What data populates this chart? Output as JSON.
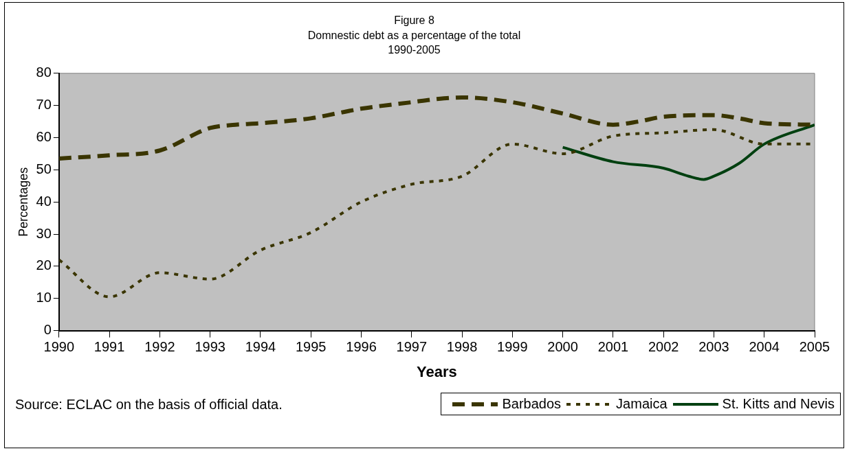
{
  "chart_data": {
    "type": "line",
    "title": "Figure 8\nDomnestic debt as a percentage of the total\n1990-2005",
    "xlabel": "Years",
    "ylabel": "Percentages",
    "xlim": [
      1990,
      2005
    ],
    "xticks": [
      1990,
      1991,
      1992,
      1993,
      1994,
      1995,
      1996,
      1997,
      1998,
      1999,
      2000,
      2001,
      2002,
      2003,
      2004,
      2005
    ],
    "ylim": [
      0,
      80
    ],
    "yticks": [
      0,
      10,
      20,
      30,
      40,
      50,
      60,
      70,
      80
    ],
    "grid": false,
    "legend": "bottom right",
    "marker": "none",
    "annotations": [
      "Source: ECLAC on the basis of official data."
    ],
    "series": [
      {
        "name": "Barbados",
        "color": "#3a3500",
        "line_style": "dashed",
        "x": [
          1990,
          1991,
          1992,
          1993,
          1993.5,
          1994,
          1995,
          1995.5,
          1996,
          1997,
          1997.5,
          1998,
          1999,
          2000,
          2001,
          2001.5,
          2002,
          2003,
          2003.5,
          2004,
          2005
        ],
        "values": [
          53.5,
          54.5,
          56,
          63,
          64,
          64.5,
          66,
          67.5,
          69,
          71,
          72,
          72.5,
          71,
          67.5,
          64,
          65,
          66.5,
          67,
          66,
          64.5,
          64
        ]
      },
      {
        "name": "Jamaica",
        "color": "#3a3500",
        "line_style": "dotted",
        "x": [
          1990,
          1991,
          1992,
          1993,
          1994,
          1995,
          1996,
          1997,
          1998,
          1999,
          2000,
          2001,
          2002,
          2003,
          2004,
          2005
        ],
        "values": [
          22,
          10.5,
          18,
          16,
          25,
          30.5,
          40,
          45.5,
          48,
          58,
          55,
          60.5,
          61.5,
          62.5,
          58,
          58
        ]
      },
      {
        "name": "St. Kitts and Nevis",
        "color": "#004010",
        "line_style": "solid",
        "x": [
          2000,
          2001,
          2002,
          2002.5,
          2002.8,
          2003,
          2003.5,
          2004,
          2005
        ],
        "values": [
          57,
          52.5,
          50.5,
          48,
          47,
          48,
          52,
          58,
          64
        ]
      }
    ]
  }
}
